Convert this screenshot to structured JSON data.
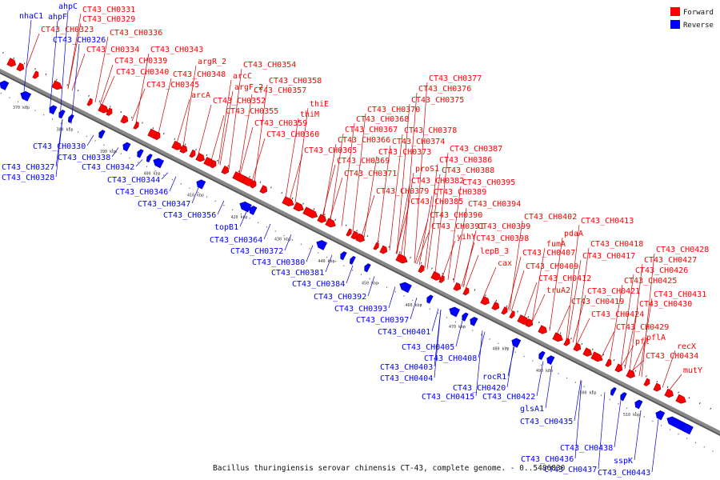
{
  "title": "Bacillus thuringiensis serovar chinensis CT-43, complete genome. - 0..5486830",
  "legend": [
    {
      "label": "Forward",
      "color": "#ff0000"
    },
    {
      "label": "Reverse",
      "color": "#0000ff"
    }
  ],
  "colors": {
    "forward": "#ff0000",
    "reverse": "#0000ff",
    "backbone": "#888888",
    "leader": "#cc0000",
    "leader_rev": "#0000cc"
  },
  "ticks": [
    "370 kbp",
    "380 kbp",
    "390 kbp",
    "400 kbp",
    "410 kbp",
    "420 kbp",
    "430 kbp",
    "440 kbp",
    "450 kbp",
    "460 kbp",
    "470 kbp",
    "480 kbp",
    "490 kbp",
    "500 kbp",
    "510 kbp"
  ],
  "forward_labels": [
    "CT43_CH0331",
    "CT43_CH0329",
    "CT43_CH0323",
    "CT43_CH0336",
    "CT43_CH0334",
    "CT43_CH0343",
    "CT43_CH0339",
    "argR_2",
    "CT43_CH0340",
    "CT43_CH0348",
    "arcC",
    "CT43_CH0345",
    "argF_2",
    "arcA",
    "CT43_CH0354",
    "CT43_CH0358",
    "CT43_CH0357",
    "CT43_CH0352",
    "CT43_CH0355",
    "thiE",
    "thiM",
    "CT43_CH0359",
    "CT43_CH0360",
    "CT43_CH0377",
    "CT43_CH0376",
    "CT43_CH0375",
    "CT43_CH0370",
    "CT43_CH0368",
    "CT43_CH0367",
    "CT43_CH0378",
    "CT43_CH0366",
    "CT43_CH0374",
    "CT43_CH0365",
    "CT43_CH0373",
    "CT43_CH0369",
    "CT43_CH0387",
    "CT43_CH0386",
    "proS1",
    "CT43_CH0388",
    "CT43_CH0371",
    "CT43_CH0382",
    "CT43_CH0395",
    "CT43_CH0379",
    "CT43_CH0389",
    "CT43_CH0385",
    "CT43_CH0394",
    "CT43_CH0390",
    "CT43_CH0402",
    "CT43_CH0413",
    "CT43_CH0391",
    "yihY",
    "CT43_CH0399",
    "pdaA",
    "CT43_CH0398",
    "fumA",
    "lepB_3",
    "CT43_CH0418",
    "CT43_CH0428",
    "CT43_CH0407",
    "CT43_CH0417",
    "cax",
    "CT43_CH0427",
    "CT43_CH0409",
    "CT43_CH0426",
    "CT43_CH0412",
    "CT43_CH0425",
    "truA2",
    "CT43_CH0421",
    "CT43_CH0431",
    "CT43_CH0419",
    "CT43_CH0430",
    "CT43_CH0424",
    "CT43_CH0429",
    "pflA",
    "pfl",
    "recX",
    "CT43_CH0434",
    "mutY"
  ],
  "reverse_labels": [
    "nhaC1",
    "ahpC",
    "ahpF",
    "CT43_CH0326",
    "CT43_CH0330",
    "CT43_CH0327",
    "CT43_CH0338",
    "CT43_CH0328",
    "CT43_CH0342",
    "CT43_CH0344",
    "CT43_CH0346",
    "CT43_CH0347",
    "CT43_CH0356",
    "topB1",
    "CT43_CH0364",
    "CT43_CH0372",
    "CT43_CH0380",
    "CT43_CH0381",
    "CT43_CH0384",
    "CT43_CH0392",
    "CT43_CH0393",
    "CT43_CH0397",
    "CT43_CH0401",
    "CT43_CH0405",
    "CT43_CH0408",
    "CT43_CH0403",
    "CT43_CH0404",
    "rocR1",
    "CT43_CH0420",
    "CT43_CH0415",
    "CT43_CH0422",
    "glsA1",
    "CT43_CH0435",
    "CT43_CH0438",
    "CT43_CH0436",
    "sspK",
    "CT43_CH0437",
    "CT43_CH0443"
  ]
}
